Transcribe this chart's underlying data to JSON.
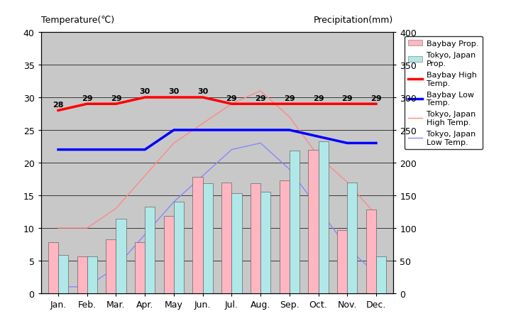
{
  "months": [
    "Jan.",
    "Feb.",
    "Mar.",
    "Apr.",
    "May",
    "Jun.",
    "Jul.",
    "Aug.",
    "Sep.",
    "Oct.",
    "Nov.",
    "Dec."
  ],
  "baybay_precip": [
    78,
    56,
    83,
    78,
    118,
    178,
    170,
    168,
    173,
    220,
    97,
    128
  ],
  "tokyo_precip": [
    59,
    56,
    114,
    133,
    140,
    168,
    153,
    155,
    218,
    233,
    170,
    57
  ],
  "baybay_high": [
    28,
    29,
    29,
    30,
    30,
    30,
    29,
    29,
    29,
    29,
    29,
    29
  ],
  "baybay_low": [
    22,
    22,
    22,
    22,
    25,
    25,
    25,
    25,
    25,
    24,
    23,
    23
  ],
  "tokyo_high": [
    10,
    10,
    13,
    18,
    23,
    26,
    29,
    31,
    27,
    21,
    17,
    12
  ],
  "tokyo_low": [
    1,
    1,
    4,
    9,
    14,
    18,
    22,
    23,
    19,
    13,
    7,
    3
  ],
  "baybay_high_labels": [
    "28",
    "29",
    "29",
    "30",
    "30",
    "30",
    "29",
    "29",
    "29",
    "29",
    "29",
    "29"
  ],
  "ylim_temp": [
    0,
    40
  ],
  "ylim_precip": [
    0,
    400
  ],
  "baybay_bar_color": "#FFB6C1",
  "tokyo_bar_color": "#B0E8E8",
  "baybay_high_color": "#FF0000",
  "baybay_low_color": "#0000FF",
  "tokyo_high_color": "#FF8888",
  "tokyo_low_color": "#8888FF",
  "plot_bg_color": "#C8C8C8",
  "fig_bg_color": "#FFFFFF",
  "ylabel_left": "Temperature(℃)",
  "ylabel_right": "Precipitation(mm)",
  "left_yticks": [
    0,
    5,
    10,
    15,
    20,
    25,
    30,
    35,
    40
  ],
  "right_yticks": [
    0,
    50,
    100,
    150,
    200,
    250,
    300,
    350,
    400
  ],
  "grid_color": "#000000",
  "bar_width": 0.35
}
